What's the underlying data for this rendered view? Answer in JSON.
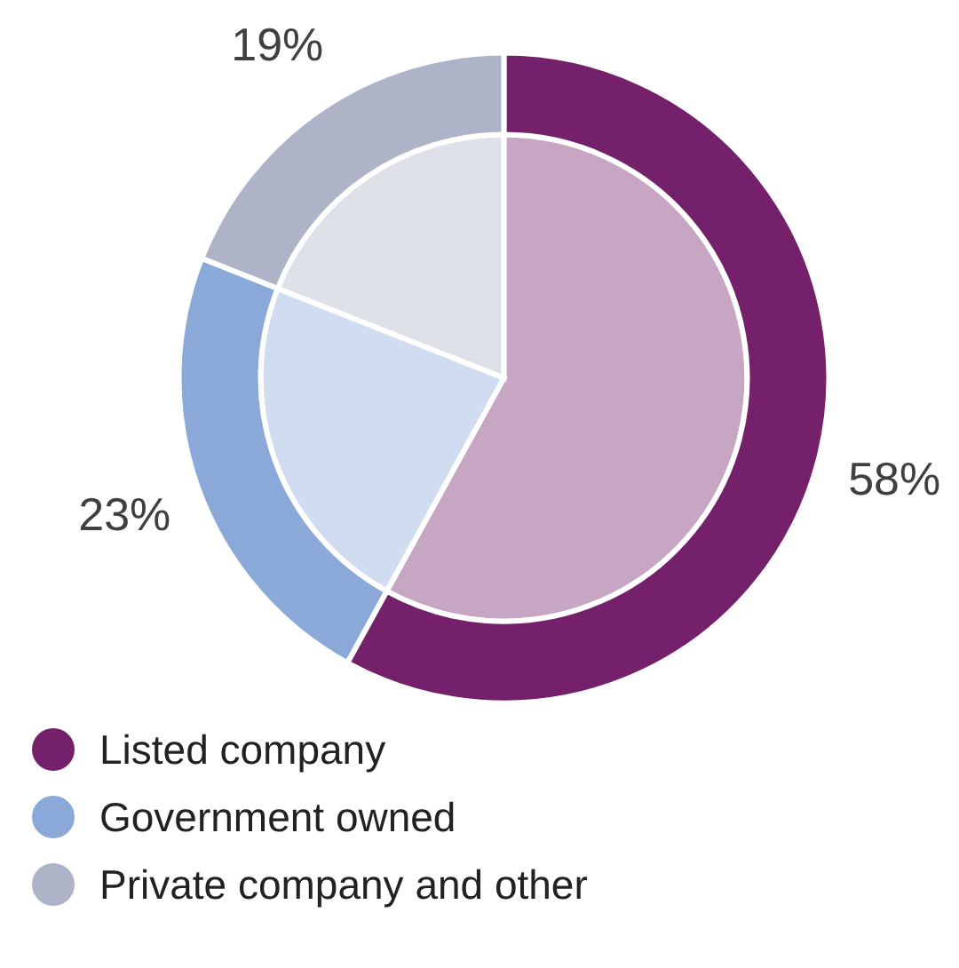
{
  "chart_data": {
    "type": "pie",
    "categories": [
      "Listed company",
      "Government owned",
      "Private company and other"
    ],
    "series": [
      {
        "values": [
          58,
          23,
          19
        ],
        "colors": [
          "#c7a6c3",
          "#d0dcef",
          "#dfe1e9"
        ]
      },
      {
        "values": [
          58,
          23,
          19
        ],
        "colors": [
          "#74206a",
          "#8aa8d8",
          "#aeb3c8"
        ],
        "value_labels": [
          "58%",
          "23%",
          "19%"
        ]
      }
    ],
    "legend": "bottom"
  }
}
